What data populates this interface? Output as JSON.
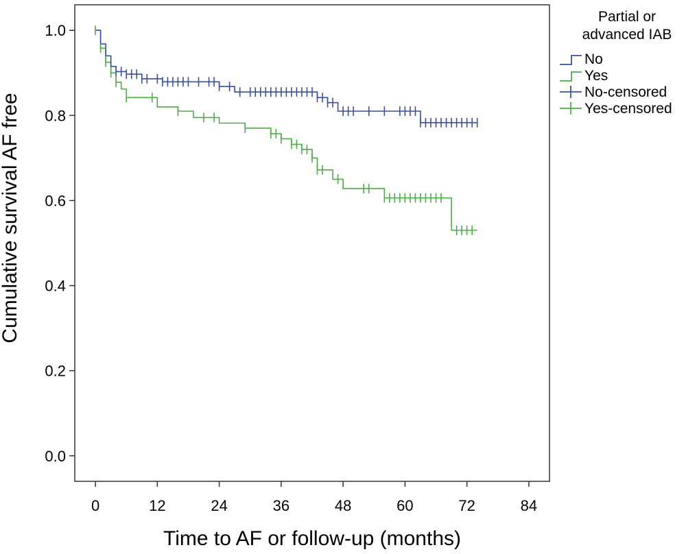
{
  "chart_data": {
    "type": "line",
    "subtype": "kaplan-meier",
    "xlabel": "Time to AF or follow-up (months)",
    "ylabel": "Cumulative survival AF free",
    "xlim": [
      -4,
      88
    ],
    "ylim": [
      -0.06,
      1.06
    ],
    "xticks": [
      0,
      12,
      24,
      36,
      48,
      60,
      72,
      84
    ],
    "xtick_labels": [
      "0",
      "12",
      "24",
      "36",
      "48",
      "60",
      "72",
      "84"
    ],
    "yticks": [
      0.0,
      0.2,
      0.4,
      0.6,
      0.8,
      1.0
    ],
    "ytick_labels": [
      "0.0",
      "0.2",
      "0.4",
      "0.6",
      "0.8",
      "1.0"
    ],
    "grid": false,
    "legend": {
      "title": [
        "Partial or",
        "advanced IAB"
      ],
      "placement": "right",
      "entries": [
        "No",
        "Yes",
        "No-censored",
        "Yes-censored"
      ]
    },
    "series": [
      {
        "name": "No",
        "color": "#3b4ea0",
        "x": [
          0,
          1,
          2,
          3,
          4,
          6,
          9,
          13,
          24,
          27,
          43,
          45,
          47,
          63,
          74
        ],
        "y": [
          1.0,
          0.968,
          0.94,
          0.915,
          0.903,
          0.897,
          0.886,
          0.879,
          0.868,
          0.855,
          0.842,
          0.83,
          0.81,
          0.783,
          0.783
        ],
        "censored_x": [
          4,
          5,
          6,
          7,
          8,
          9,
          10,
          12,
          13,
          14,
          15,
          16,
          17,
          18,
          20,
          22,
          23,
          24,
          26,
          28,
          30,
          31,
          32,
          33,
          34,
          35,
          36,
          37,
          38,
          39,
          40,
          41,
          42,
          43,
          44,
          45,
          46,
          48,
          49,
          50,
          53,
          56,
          59,
          60,
          61,
          62,
          63,
          64,
          65,
          66,
          67,
          68,
          69,
          70,
          71,
          72,
          73,
          74
        ]
      },
      {
        "name": "Yes",
        "color": "#4cad47",
        "x": [
          0,
          1,
          2,
          3,
          4,
          5,
          6,
          12,
          16,
          19,
          24,
          29,
          34,
          36,
          38,
          40,
          42,
          43,
          46,
          48,
          56,
          69,
          74
        ],
        "y": [
          1.0,
          0.958,
          0.925,
          0.9,
          0.878,
          0.862,
          0.842,
          0.82,
          0.81,
          0.795,
          0.782,
          0.77,
          0.757,
          0.745,
          0.732,
          0.72,
          0.7,
          0.672,
          0.65,
          0.628,
          0.606,
          0.53,
          0.53
        ],
        "censored_x": [
          0,
          1,
          2,
          3,
          4,
          6,
          11,
          16,
          21,
          23,
          29,
          34,
          35,
          36,
          38,
          39,
          40,
          41,
          42,
          43,
          44,
          47,
          52,
          53,
          56,
          57,
          58,
          59,
          60,
          61,
          62,
          63,
          64,
          65,
          66,
          67,
          70,
          71,
          72,
          73
        ]
      }
    ]
  }
}
